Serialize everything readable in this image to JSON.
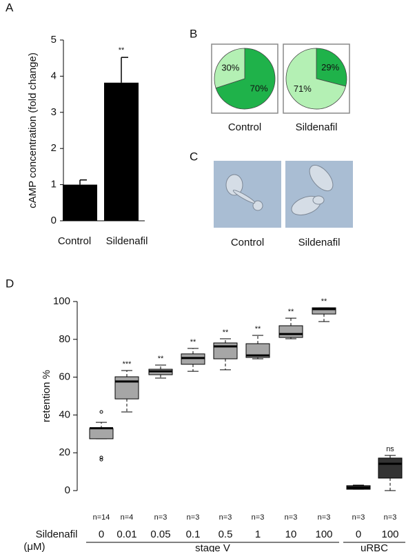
{
  "chart_data": [
    {
      "type": "bar",
      "panel": "A",
      "ylabel": "cAMP concentration (fold change)",
      "categories": [
        "Control",
        "Sildenafil"
      ],
      "values": [
        1,
        3.82
      ],
      "errors": [
        0.13,
        0.7
      ],
      "significance": [
        null,
        "**"
      ],
      "color": "#000000",
      "ylim": [
        0,
        5
      ],
      "yticks": [
        0,
        1,
        2,
        3,
        4,
        5
      ]
    },
    {
      "type": "pie",
      "panel": "B",
      "pies": [
        {
          "label": "Control",
          "values": [
            70,
            30
          ],
          "value_labels": [
            "70%",
            "30%"
          ]
        },
        {
          "label": "Sildenafil",
          "values": [
            29,
            71
          ],
          "value_labels": [
            "29%",
            "71%"
          ]
        }
      ],
      "colors": [
        "#1fb24a",
        "#b4f0b4"
      ]
    },
    {
      "type": "image",
      "panel": "C",
      "captions": [
        "Control",
        "Sildenafil"
      ]
    },
    {
      "type": "box",
      "panel": "D",
      "ylabel": "retention %",
      "xlabel": "Sildenafil",
      "xlabel_unit": "(μM)",
      "categories": [
        "0",
        "0.01",
        "0.05",
        "0.1",
        "0.5",
        "1",
        "10",
        "100",
        "0",
        "100"
      ],
      "groups": [
        {
          "label": "stage V",
          "count": 8
        },
        {
          "label": "uRBC",
          "count": 2
        }
      ],
      "n_labels": [
        "n=14",
        "n=4",
        "n=3",
        "n=3",
        "n=3",
        "n=3",
        "n=3",
        "n=3",
        "n=3",
        "n=3"
      ],
      "significance": [
        null,
        "***",
        "**",
        "**",
        "**",
        "**",
        "**",
        "**",
        null,
        "ns"
      ],
      "whisker_low": [
        27.4,
        41.6,
        59.5,
        63.1,
        63.9,
        69.7,
        80.3,
        89.4,
        0.7,
        0
      ],
      "q1": [
        27.4,
        48.5,
        61.3,
        66.8,
        69.7,
        70.4,
        81,
        93.4,
        0.7,
        6.6
      ],
      "median": [
        33,
        57.7,
        63.1,
        70.1,
        76.3,
        71.5,
        82.8,
        96,
        1.5,
        14.2
      ],
      "q3": [
        32.8,
        60.2,
        64.2,
        72.3,
        78.1,
        77.7,
        87.2,
        96.7,
        2.6,
        17.2
      ],
      "whisker_high": [
        36.1,
        63.5,
        66.4,
        75.2,
        80.3,
        82.1,
        91.2,
        96.7,
        2.9,
        18.6
      ],
      "outliers": [
        [
          41.6,
          17.5,
          16.4
        ],
        [],
        [],
        [],
        [],
        [],
        [],
        [],
        [],
        []
      ],
      "colors": [
        "#a6a6a6",
        "#a6a6a6",
        "#a6a6a6",
        "#a6a6a6",
        "#a6a6a6",
        "#a6a6a6",
        "#a6a6a6",
        "#a6a6a6",
        "#333333",
        "#333333"
      ],
      "ylim": [
        -5,
        105
      ],
      "yticks": [
        0,
        20,
        40,
        60,
        80,
        100
      ]
    }
  ]
}
